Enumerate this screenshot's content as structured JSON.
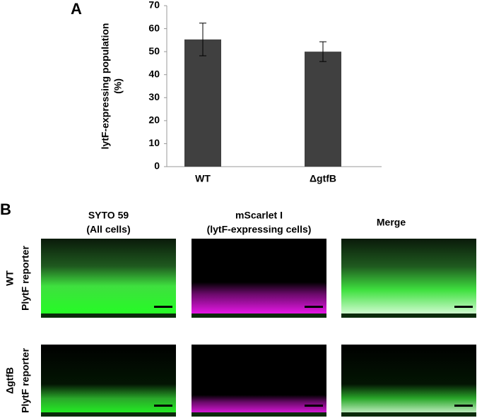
{
  "chart_data": {
    "type": "bar",
    "panel": "A",
    "ylabel": [
      "lytF-expressing population",
      "(%)"
    ],
    "categories": [
      "WT",
      "ΔgtfB"
    ],
    "values": [
      55.3,
      50.0
    ],
    "errors": [
      7.1,
      4.3
    ],
    "color": "#404040",
    "ylim": [
      0,
      70
    ],
    "yticks": [
      0,
      10,
      20,
      30,
      40,
      50,
      60,
      70
    ]
  },
  "panel_b": {
    "label": "B",
    "columns": [
      [
        "SYTO 59",
        "(All cells)"
      ],
      [
        "mScarlet I",
        "(lytF-expressing cells)"
      ],
      [
        "Merge"
      ]
    ],
    "rows": [
      [
        "WT",
        "PlytF reporter"
      ],
      [
        "ΔgtfB",
        "PlytF reporter"
      ]
    ]
  }
}
